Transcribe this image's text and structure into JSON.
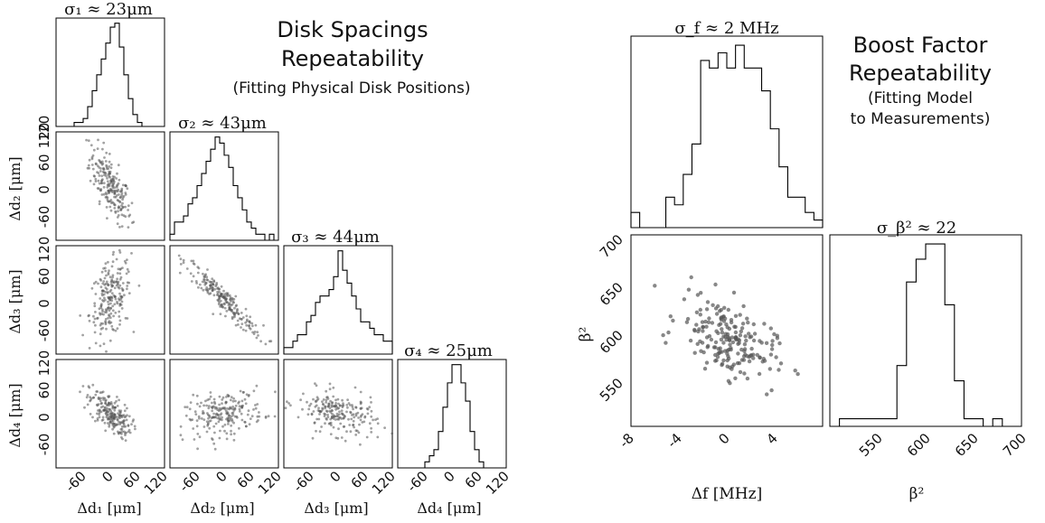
{
  "left": {
    "title_lines": [
      "Disk Spacings",
      "Repeatability"
    ],
    "subtitle": "(Fitting Physical Disk Positions)",
    "variable_labels": [
      "Δd₁ [μm]",
      "Δd₂ [μm]",
      "Δd₃ [μm]",
      "Δd₄ [μm]"
    ],
    "sigma_labels": [
      "σ₁ ≈ 23μm",
      "σ₂ ≈ 43μm",
      "σ₃ ≈ 44μm",
      "σ₄ ≈ 25μm"
    ],
    "tick_labels": [
      "-60",
      "0",
      "60",
      "120"
    ],
    "y_tick_labels": [
      "120",
      "60",
      "0",
      "-60"
    ]
  },
  "right": {
    "title_lines": [
      "Boost Factor",
      "Repeatability"
    ],
    "subtitle_lines": [
      "(Fitting Model",
      "to Measurements)"
    ],
    "hist_f_label": "σ_f ≈ 2 MHz",
    "hist_beta_label": "σ_β² ≈ 22",
    "x_label_f": "Δf [MHz]",
    "x_label_beta": "β²",
    "y_label_beta": "β²",
    "f_ticks": [
      "-8",
      "-4",
      "0",
      "4"
    ],
    "beta_ticks": [
      "550",
      "600",
      "650",
      "700"
    ],
    "beta_y_ticks": [
      "700",
      "650",
      "600",
      "550"
    ]
  },
  "chart_data": [
    {
      "type": "histogram",
      "title": "σ₁ ≈ 23μm",
      "xlabel": "Δd₁ [μm]",
      "xlim": [
        -120,
        120
      ],
      "bin_counts": [
        0,
        0,
        0,
        0,
        1,
        1,
        2,
        5,
        9,
        13,
        17,
        21,
        25,
        26,
        20,
        13,
        7,
        3,
        1,
        0,
        0,
        0,
        0,
        0
      ]
    },
    {
      "type": "histogram",
      "title": "σ₂ ≈ 43μm",
      "xlabel": "Δd₂ [μm]",
      "xlim": [
        -120,
        120
      ],
      "bin_counts": [
        1,
        3,
        3,
        4,
        6,
        7,
        9,
        11,
        13,
        15,
        17,
        16,
        14,
        12,
        9,
        7,
        5,
        3,
        2,
        1,
        1,
        0,
        1,
        0
      ]
    },
    {
      "type": "histogram",
      "title": "σ₃ ≈ 44μm",
      "xlabel": "Δd₃ [μm]",
      "xlim": [
        -120,
        120
      ],
      "bin_counts": [
        1,
        1,
        2,
        3,
        3,
        5,
        6,
        8,
        9,
        9,
        10,
        12,
        16,
        13,
        11,
        9,
        7,
        5,
        5,
        4,
        3,
        3,
        2,
        2
      ]
    },
    {
      "type": "histogram",
      "title": "σ₄ ≈ 25μm",
      "xlabel": "Δd₄ [μm]",
      "xlim": [
        -120,
        120
      ],
      "bin_counts": [
        0,
        0,
        0,
        0,
        0,
        0,
        1,
        2,
        3,
        6,
        10,
        14,
        17,
        17,
        14,
        11,
        6,
        3,
        1,
        0,
        0,
        0,
        0,
        0
      ]
    },
    {
      "type": "scatter",
      "x_label": "Δd₁ [μm]",
      "y_label": "Δd₂ [μm]",
      "xlim": [
        -120,
        120
      ],
      "ylim": [
        -120,
        120
      ],
      "correlation": -0.7,
      "x_sigma": 23,
      "y_sigma": 43
    },
    {
      "type": "scatter",
      "x_label": "Δd₁ [μm]",
      "y_label": "Δd₃ [μm]",
      "xlim": [
        -120,
        120
      ],
      "ylim": [
        -120,
        120
      ],
      "correlation": 0.35,
      "x_sigma": 23,
      "y_sigma": 44
    },
    {
      "type": "scatter",
      "x_label": "Δd₂ [μm]",
      "y_label": "Δd₃ [μm]",
      "xlim": [
        -120,
        120
      ],
      "ylim": [
        -120,
        120
      ],
      "correlation": -0.95,
      "x_sigma": 43,
      "y_sigma": 44
    },
    {
      "type": "scatter",
      "x_label": "Δd₁ [μm]",
      "y_label": "Δd₄ [μm]",
      "xlim": [
        -120,
        120
      ],
      "ylim": [
        -120,
        120
      ],
      "correlation": -0.6,
      "x_sigma": 23,
      "y_sigma": 25
    },
    {
      "type": "scatter",
      "x_label": "Δd₂ [μm]",
      "y_label": "Δd₄ [μm]",
      "xlim": [
        -120,
        120
      ],
      "ylim": [
        -120,
        120
      ],
      "correlation": 0.3,
      "x_sigma": 43,
      "y_sigma": 25
    },
    {
      "type": "scatter",
      "x_label": "Δd₃ [μm]",
      "y_label": "Δd₄ [μm]",
      "xlim": [
        -120,
        120
      ],
      "ylim": [
        -120,
        120
      ],
      "correlation": -0.4,
      "x_sigma": 44,
      "y_sigma": 25
    },
    {
      "type": "histogram",
      "title": "σ_f ≈ 2 MHz",
      "xlabel": "Δf [MHz]",
      "xlim": [
        -8,
        8
      ],
      "bin_counts": [
        2,
        0,
        0,
        0,
        4,
        3,
        7,
        11,
        22,
        21,
        23,
        21,
        24,
        21,
        21,
        18,
        13,
        8,
        4,
        4,
        2,
        1
      ]
    },
    {
      "type": "histogram",
      "title": "σ_β² ≈ 22",
      "xlabel": "β²",
      "xlim": [
        500,
        700
      ],
      "bin_counts": [
        0,
        1,
        1,
        1,
        1,
        1,
        1,
        8,
        19,
        22,
        24,
        24,
        16,
        6,
        1,
        1,
        0,
        1,
        0,
        0
      ]
    },
    {
      "type": "scatter",
      "x_label": "Δf [MHz]",
      "y_label": "β²",
      "xlim": [
        -8,
        8
      ],
      "ylim": [
        500,
        700
      ],
      "correlation": -0.45,
      "x_mean": 0,
      "x_sigma": 2,
      "y_mean": 592,
      "y_sigma": 22
    }
  ]
}
